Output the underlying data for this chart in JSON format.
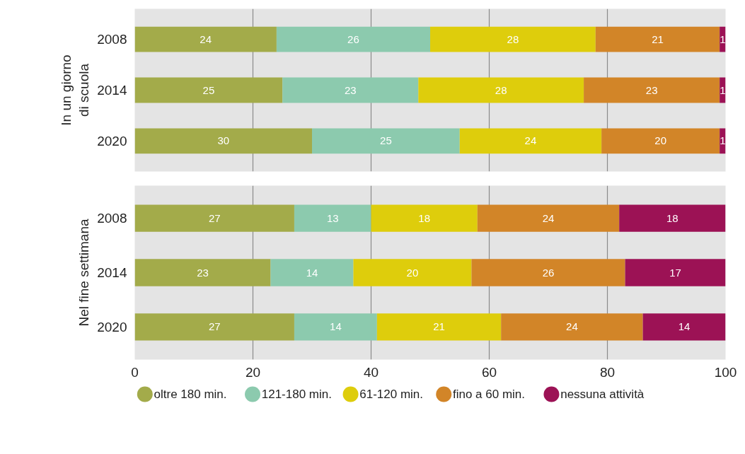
{
  "chart_data": [
    {
      "type": "bar",
      "orientation": "horizontal",
      "stacked": true,
      "data_labels": true,
      "grid": "x",
      "tick_labels": "y",
      "ylabel": "In un giorno\ndi scuola",
      "categories": [
        "2008",
        "2014",
        "2020"
      ],
      "xlim": [
        0,
        100
      ],
      "xticks": [
        0,
        20,
        40,
        60,
        80,
        100
      ],
      "series": [
        {
          "color": "#a3ab4a",
          "values": [
            24,
            25,
            30
          ]
        },
        {
          "color": "#8ccaae",
          "values": [
            26,
            23,
            25
          ]
        },
        {
          "color": "#decd0c",
          "values": [
            28,
            28,
            24
          ]
        },
        {
          "color": "#d28528",
          "values": [
            21,
            23,
            20
          ]
        },
        {
          "color": "#9c1255",
          "values": [
            1,
            1,
            1
          ]
        }
      ]
    },
    {
      "type": "bar",
      "orientation": "horizontal",
      "stacked": true,
      "data_labels": true,
      "grid": "x",
      "legend": "bottom",
      "ylabel": "Nel fine settimana",
      "categories": [
        "2008",
        "2014",
        "2020"
      ],
      "xlim": [
        0,
        100
      ],
      "xticks": [
        0,
        20,
        40,
        60,
        80,
        100
      ],
      "series": [
        {
          "name": "oltre 180 min.",
          "color": "#a3ab4a",
          "values": [
            27,
            23,
            27
          ]
        },
        {
          "name": "121-180 min.",
          "color": "#8ccaae",
          "values": [
            13,
            14,
            14
          ]
        },
        {
          "name": "61-120 min.",
          "color": "#decd0c",
          "values": [
            18,
            20,
            21
          ]
        },
        {
          "name": "fino a 60 min.",
          "color": "#d28528",
          "values": [
            24,
            26,
            24
          ]
        },
        {
          "name": "nessuna attività",
          "color": "#9c1255",
          "values": [
            18,
            17,
            14
          ]
        }
      ]
    }
  ]
}
